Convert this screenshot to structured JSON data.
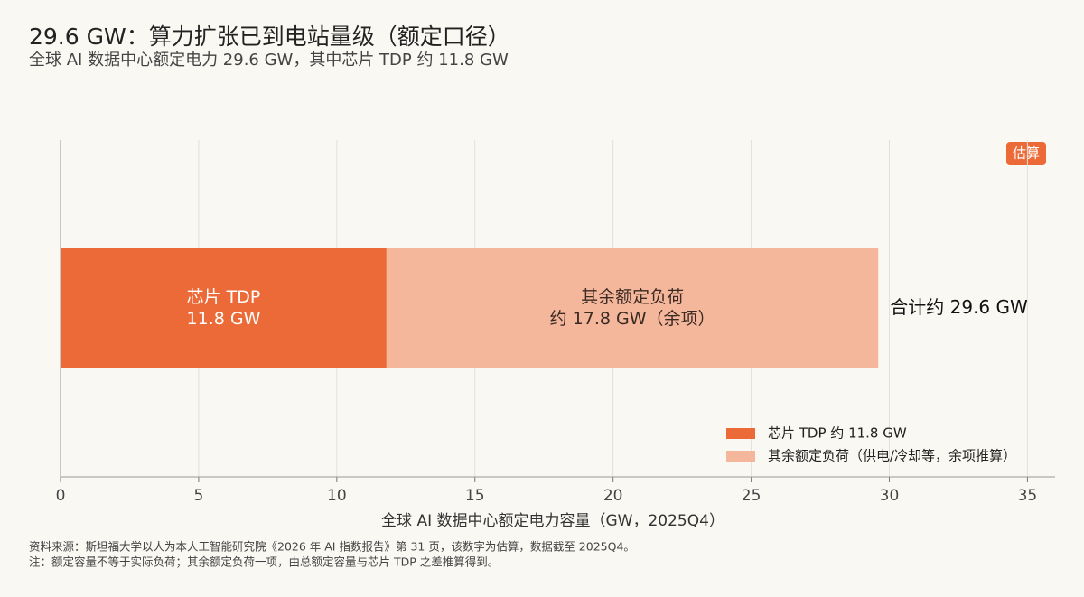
{
  "chart_data": {
    "type": "stacked_bar_h",
    "title": "29.6 GW：算力扩张已到电站量级（额定口径）",
    "subtitle": "全球 AI 数据中心额定电力 29.6 GW，其中芯片 TDP 约 11.8 GW",
    "badge": "估算",
    "xlabel": "全球 AI 数据中心额定电力容量（GW，2025Q4）",
    "categories": [
      null
    ],
    "series": [
      {
        "name": "芯片 TDP 约 11.8 GW",
        "color": "#ec6a37",
        "segment_labels": [
          "芯片 TDP"
        ],
        "values": [
          11.8
        ],
        "value_labels": [
          "11.8 GW"
        ],
        "label_color": "#ffffff"
      },
      {
        "name": "其余额定负荷（供电/冷却等，余项推算）",
        "color": "#f4b79c",
        "segment_labels": [
          "其余额定负荷"
        ],
        "values": [
          17.8
        ],
        "value_labels": [
          "约 17.8 GW（余项）"
        ],
        "label_color": "#3a2a22"
      }
    ],
    "total_annotation": "合计约 29.6 GW",
    "xlim": [
      0,
      36
    ],
    "xticks": [
      0,
      5,
      10,
      15,
      20,
      25,
      30,
      35
    ],
    "grid": true,
    "legend": "lower right",
    "notes": [
      "资料来源：斯坦福大学以人为本人工智能研究院《2026 年 AI 指数报告》第 31 页，该数字为估算，数据截至 2025Q4。",
      "注：额定容量不等于实际负荷；其余额定负荷一项，由总额定容量与芯片 TDP 之差推算得到。"
    ]
  }
}
